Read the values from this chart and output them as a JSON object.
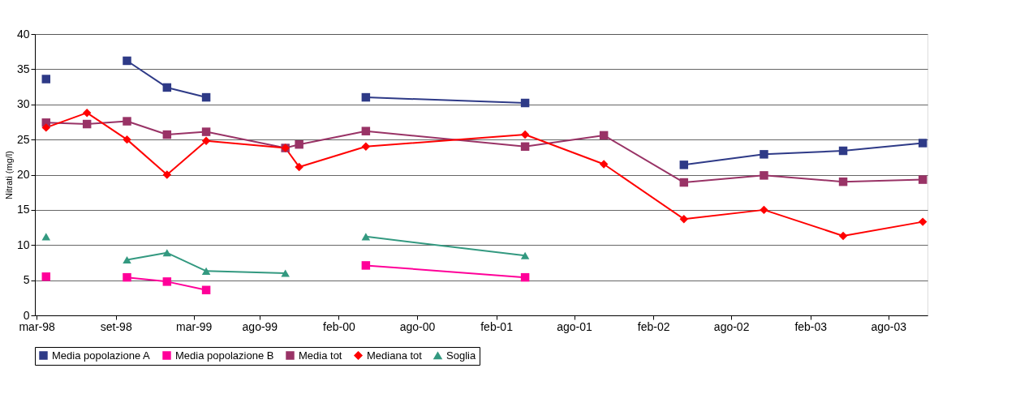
{
  "chart_data": {
    "type": "line",
    "ylabel": "Nitrati (mg/l)",
    "x": [
      "1998-03-23",
      "1998-06-26",
      "1998-09-27",
      "1998-12-29",
      "1999-03-30",
      "1999-09-30",
      "1999-11-01",
      "2000-04-04",
      "2001-04-09",
      "2001-10-09",
      "2002-04-13",
      "2002-10-16",
      "2003-04-18",
      "2003-10-20"
    ],
    "series": [
      {
        "name": "Media popolazione A",
        "color": "#2e3a87",
        "marker": "square",
        "values": [
          33.6,
          null,
          36.2,
          32.4,
          31.0,
          null,
          null,
          31.0,
          30.2,
          null,
          21.4,
          22.9,
          23.4,
          24.5
        ]
      },
      {
        "name": "Media popolazione B",
        "color": "#ff0099",
        "marker": "square",
        "values": [
          5.5,
          null,
          5.4,
          4.8,
          3.6,
          null,
          null,
          7.1,
          5.4,
          null,
          null,
          null,
          null,
          null
        ]
      },
      {
        "name": "Media tot",
        "color": "#993366",
        "marker": "square",
        "values": [
          27.4,
          27.2,
          27.6,
          25.7,
          26.1,
          23.8,
          24.3,
          26.2,
          24.0,
          25.6,
          18.9,
          19.9,
          19.0,
          19.3
        ]
      },
      {
        "name": "Mediana tot",
        "color": "#ff0000",
        "marker": "diamond",
        "values": [
          26.7,
          28.8,
          25.0,
          20.0,
          24.8,
          23.8,
          21.1,
          24.0,
          25.7,
          21.5,
          13.7,
          15.0,
          11.3,
          13.3
        ]
      },
      {
        "name": "Soglia",
        "color": "#339980",
        "marker": "triangle",
        "values": [
          11.2,
          null,
          7.9,
          8.9,
          6.3,
          6.0,
          null,
          11.2,
          8.5,
          null,
          null,
          null,
          null,
          null
        ]
      }
    ],
    "xlim": [
      "1998-02-25",
      "2003-10-31"
    ],
    "xticks": [
      {
        "value": "1998-03-01",
        "label": "mar-98"
      },
      {
        "value": "1998-09-01",
        "label": "set-98"
      },
      {
        "value": "1999-03-01",
        "label": "mar-99"
      },
      {
        "value": "1999-08-01",
        "label": "ago-99"
      },
      {
        "value": "2000-02-01",
        "label": "feb-00"
      },
      {
        "value": "2000-08-01",
        "label": "ago-00"
      },
      {
        "value": "2001-02-01",
        "label": "feb-01"
      },
      {
        "value": "2001-08-01",
        "label": "ago-01"
      },
      {
        "value": "2002-02-01",
        "label": "feb-02"
      },
      {
        "value": "2002-08-01",
        "label": "ago-02"
      },
      {
        "value": "2003-02-01",
        "label": "feb-03"
      },
      {
        "value": "2003-08-01",
        "label": "ago-03"
      }
    ],
    "ylim": [
      0,
      40
    ],
    "yticks": [
      0,
      5,
      10,
      15,
      20,
      25,
      30,
      35,
      40
    ],
    "grid": "y",
    "legend": "bottom"
  }
}
